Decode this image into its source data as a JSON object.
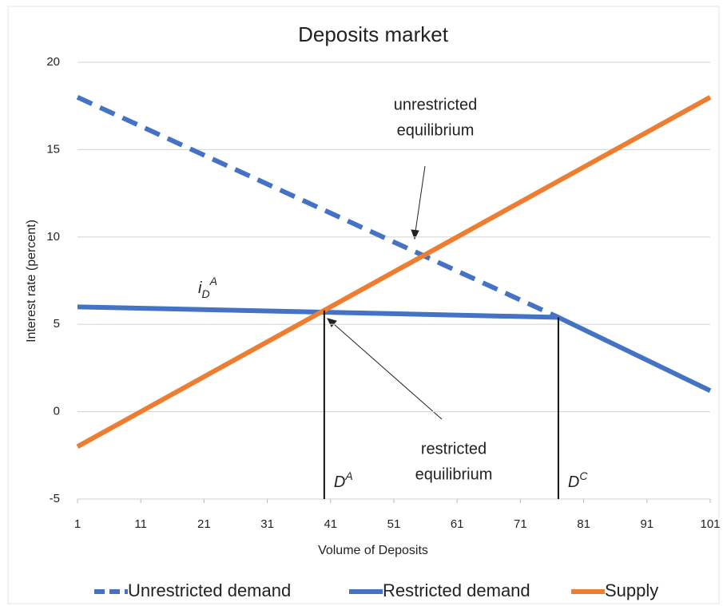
{
  "chart_data": {
    "type": "line",
    "title": "Deposits market",
    "xlabel": "Volume of Deposits",
    "ylabel": "Interest  rate (percent)",
    "xlim": [
      1,
      101
    ],
    "xticks": [
      1,
      11,
      21,
      31,
      41,
      51,
      61,
      71,
      81,
      91,
      101
    ],
    "ylim": [
      -5,
      20
    ],
    "yticks": [
      -5,
      0,
      5,
      10,
      15,
      20
    ],
    "grid": true,
    "legend": "bottom",
    "series": [
      {
        "name": "Unrestricted demand",
        "color": "#4472c4",
        "style": "dashed",
        "x": [
          1,
          77
        ],
        "values": [
          18,
          5.4
        ]
      },
      {
        "name": "Restricted demand",
        "color": "#4472c4",
        "style": "solid",
        "x": [
          1,
          77,
          101
        ],
        "values": [
          6,
          5.4,
          1.2
        ]
      },
      {
        "name": "Supply",
        "color": "#ed7d31",
        "style": "solid",
        "x": [
          1,
          101
        ],
        "values": [
          -2,
          18
        ]
      }
    ],
    "vlines": [
      {
        "x": 40,
        "y": 5.8,
        "base": "D",
        "sup": "A"
      },
      {
        "x": 77,
        "y": 5.4,
        "base": "D",
        "sup": "C"
      }
    ],
    "rate_label": {
      "base": "i",
      "sub": "D",
      "sup": "A"
    },
    "annotations": [
      {
        "lines": [
          "unrestricted",
          "equilibrium"
        ]
      },
      {
        "lines": [
          "restricted",
          "equilibrium"
        ]
      }
    ]
  }
}
